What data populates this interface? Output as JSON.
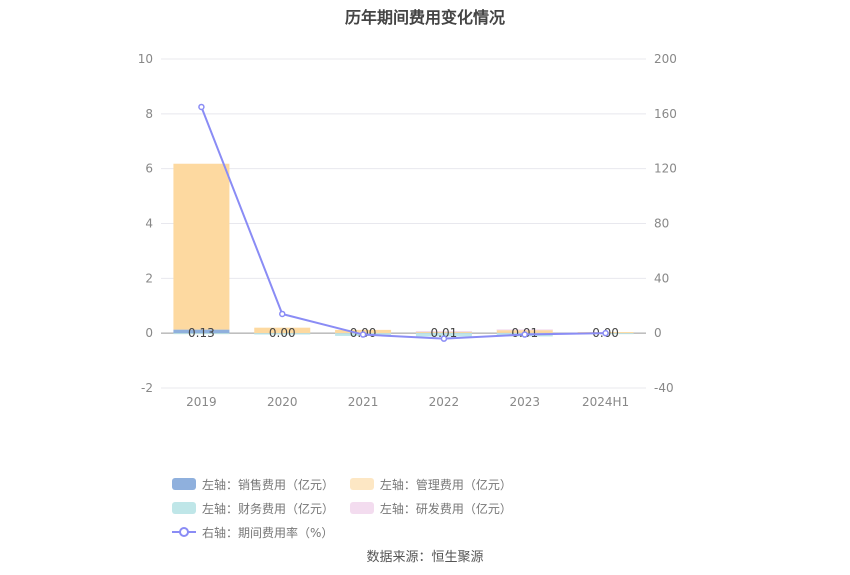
{
  "title": "历年期间费用变化情况",
  "source": "数据来源：恒生聚源",
  "chart_data": {
    "type": "bar",
    "categories": [
      "2019",
      "2020",
      "2021",
      "2022",
      "2023",
      "2024H1"
    ],
    "left_axis": {
      "ticks": [
        "10",
        "8",
        "6",
        "4",
        "2",
        "0",
        "-2"
      ],
      "ylim": [
        -2,
        10
      ]
    },
    "right_axis": {
      "ticks": [
        "200",
        "160",
        "120",
        "80",
        "40",
        "0",
        "-40"
      ],
      "ylim": [
        -40,
        200
      ]
    },
    "stacked": true,
    "series": [
      {
        "name": "左轴：销售费用（亿元）",
        "axis": "left",
        "color": "#8fb0dd",
        "values": [
          0.13,
          0.0,
          0.0,
          0.01,
          0.01,
          0.0
        ]
      },
      {
        "name": "左轴：管理费用（亿元）",
        "axis": "left",
        "color": "#fdd9a0",
        "values": [
          6.05,
          0.2,
          0.12,
          0.05,
          0.12,
          0.04
        ]
      },
      {
        "name": "左轴：财务费用（亿元）",
        "axis": "left",
        "color": "#bfe6e8",
        "values": [
          -0.02,
          -0.05,
          -0.1,
          -0.12,
          -0.12,
          -0.03
        ]
      },
      {
        "name": "左轴：研发费用（亿元）",
        "axis": "left",
        "color": "#f3dcef",
        "values": [
          0.0,
          0.0,
          0.0,
          0.02,
          0.01,
          0.0
        ]
      },
      {
        "name": "右轴：期间费用率（%）",
        "axis": "right",
        "type": "line",
        "color": "#8a8cf5",
        "values": [
          165,
          14,
          -1,
          -4,
          -1,
          0
        ]
      }
    ],
    "data_labels": [
      "0.13",
      "0.00",
      "0.00",
      "0.01",
      "0.01",
      "0.00"
    ],
    "grid": true,
    "legend_position": "bottom"
  }
}
